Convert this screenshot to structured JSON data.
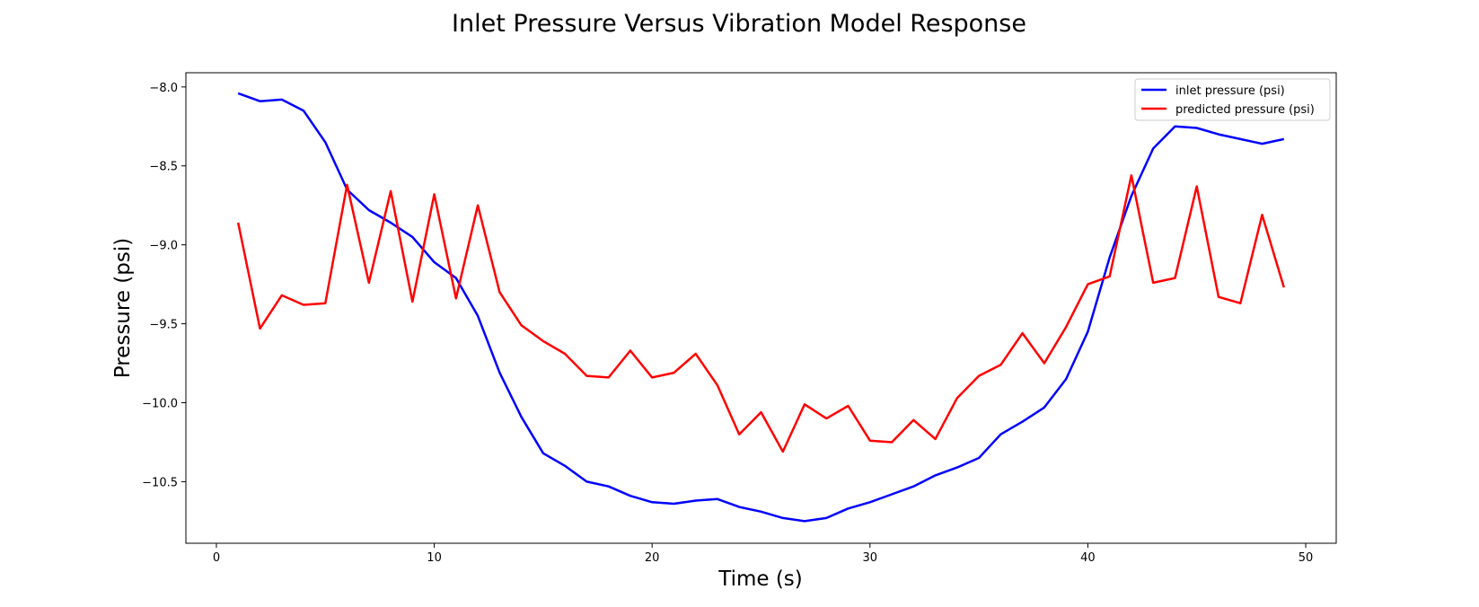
{
  "chart_data": {
    "type": "line",
    "title": "Inlet Pressure Versus Vibration Model Response",
    "xlabel": "Time (s)",
    "ylabel": "Pressure (psi)",
    "xlim": [
      -1.4,
      51.4
    ],
    "ylim": [
      -10.89,
      -7.91
    ],
    "xticks": [
      0,
      10,
      20,
      30,
      40,
      50
    ],
    "xtick_labels": [
      "0",
      "10",
      "20",
      "30",
      "40",
      "50"
    ],
    "yticks": [
      -8.0,
      -8.5,
      -9.0,
      -9.5,
      -10.0,
      -10.5
    ],
    "ytick_labels": [
      "−8.0",
      "−8.5",
      "−9.0",
      "−9.5",
      "−10.0",
      "−10.5"
    ],
    "grid": false,
    "legend_position": "top-right",
    "x": [
      1,
      2,
      3,
      4,
      5,
      6,
      7,
      8,
      9,
      10,
      11,
      12,
      13,
      14,
      15,
      16,
      17,
      18,
      19,
      20,
      21,
      22,
      23,
      24,
      25,
      26,
      27,
      28,
      29,
      30,
      31,
      32,
      33,
      34,
      35,
      36,
      37,
      38,
      39,
      40,
      41,
      42,
      43,
      44,
      45,
      46,
      47,
      48,
      49
    ],
    "series": [
      {
        "name": "inlet pressure (psi)",
        "color": "#0000ff",
        "values": [
          -8.04,
          -8.09,
          -8.08,
          -8.15,
          -8.35,
          -8.65,
          -8.78,
          -8.86,
          -8.95,
          -9.11,
          -9.21,
          -9.45,
          -9.81,
          -10.09,
          -10.32,
          -10.4,
          -10.5,
          -10.53,
          -10.59,
          -10.63,
          -10.64,
          -10.62,
          -10.61,
          -10.66,
          -10.69,
          -10.73,
          -10.75,
          -10.73,
          -10.67,
          -10.63,
          -10.58,
          -10.53,
          -10.46,
          -10.41,
          -10.35,
          -10.2,
          -10.12,
          -10.03,
          -9.85,
          -9.55,
          -9.08,
          -8.69,
          -8.39,
          -8.25,
          -8.26,
          -8.3,
          -8.33,
          -8.36,
          -8.33
        ]
      },
      {
        "name": "predicted pressure (psi)",
        "color": "#ff0000",
        "values": [
          -8.86,
          -9.53,
          -9.32,
          -9.38,
          -9.37,
          -8.62,
          -9.24,
          -8.66,
          -9.36,
          -8.68,
          -9.34,
          -8.75,
          -9.3,
          -9.51,
          -9.61,
          -9.69,
          -9.83,
          -9.84,
          -9.67,
          -9.84,
          -9.81,
          -9.69,
          -9.89,
          -10.2,
          -10.06,
          -10.31,
          -10.01,
          -10.1,
          -10.02,
          -10.24,
          -10.25,
          -10.11,
          -10.23,
          -9.97,
          -9.83,
          -9.76,
          -9.56,
          -9.75,
          -9.52,
          -9.25,
          -9.2,
          -8.56,
          -9.24,
          -9.21,
          -8.63,
          -9.33,
          -9.37,
          -8.81,
          -9.27
        ]
      }
    ]
  }
}
